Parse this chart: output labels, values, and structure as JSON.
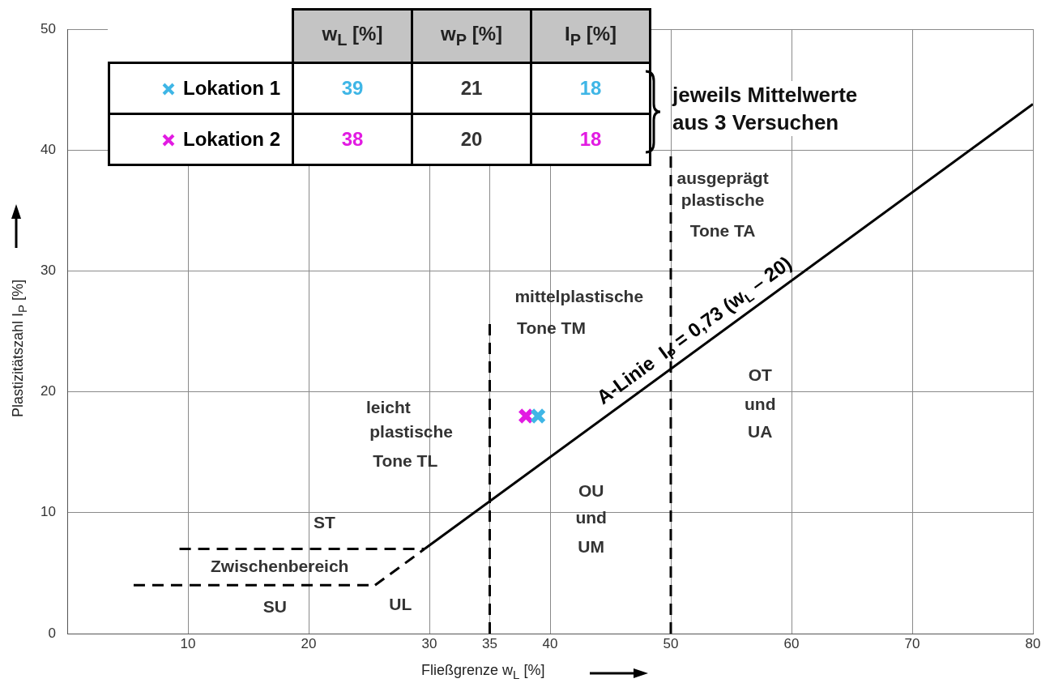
{
  "chart_data": {
    "type": "scatter",
    "xlabel": "Fließgrenze w$_{L}$ [%]",
    "ylabel": "Plastizitätszahl I$_{P}$ [%]",
    "xlim": [
      0,
      80
    ],
    "xticks": [
      10,
      20,
      30,
      35,
      40,
      50,
      60,
      70,
      80
    ],
    "ylim": [
      0,
      50
    ],
    "yticks": [
      0,
      10,
      20,
      30,
      40,
      50
    ],
    "grid": true,
    "legend": "top left",
    "series": [
      {
        "name": "Lokation 1",
        "type": "scatter",
        "color": "#3fb6e6",
        "marker": "cross",
        "x": [
          39
        ],
        "values": [
          18
        ]
      },
      {
        "name": "Lokation 2",
        "type": "scatter",
        "color": "#e21be2",
        "marker": "cross",
        "x": [
          38
        ],
        "values": [
          18
        ]
      },
      {
        "name": "A-Linie  I$_{P}$ = 0,73 (w$_{L}$ – 20)",
        "type": "line",
        "color": "#000000",
        "line_style": "solid",
        "marker": "none",
        "x": [
          29.6,
          80
        ],
        "values": [
          7,
          43.8
        ]
      },
      {
        "type": "line",
        "color": "#000000",
        "line_style": "dashed",
        "marker": "none",
        "x": [
          25.5,
          29.6
        ],
        "values": [
          4,
          7
        ]
      },
      {
        "type": "line",
        "color": "#000000",
        "line_style": "dashed",
        "marker": "none",
        "x": [
          5.5,
          25.5
        ],
        "values": [
          4,
          4
        ]
      },
      {
        "type": "line",
        "color": "#000000",
        "line_style": "dashed",
        "marker": "none",
        "x": [
          9.3,
          29.6
        ],
        "values": [
          7,
          7
        ]
      },
      {
        "type": "line",
        "color": "#000000",
        "line_style": "dashed",
        "marker": "none",
        "x": [
          35,
          35
        ],
        "values": [
          0,
          25.6
        ]
      },
      {
        "type": "line",
        "color": "#000000",
        "line_style": "dashed",
        "marker": "none",
        "x": [
          50,
          50
        ],
        "values": [
          0,
          39.8
        ]
      }
    ],
    "annotations": [
      "w$_{L}$ [%]",
      "w$_{P}$ [%]",
      "I$_{P}$ [%]",
      "21",
      "20",
      "jeweils Mittelwerte\naus 3 Versuchen",
      "ausgeprägt",
      "plastische",
      "Tone TA",
      "mittelplastische",
      "Tone TM",
      "leicht",
      "plastische",
      "Tone TL",
      "OT",
      "und",
      "UA",
      "OU",
      "und",
      "UM",
      "ST",
      "Zwischenbereich",
      "SU",
      "UL",
      "39",
      "38",
      "18",
      "18"
    ]
  }
}
